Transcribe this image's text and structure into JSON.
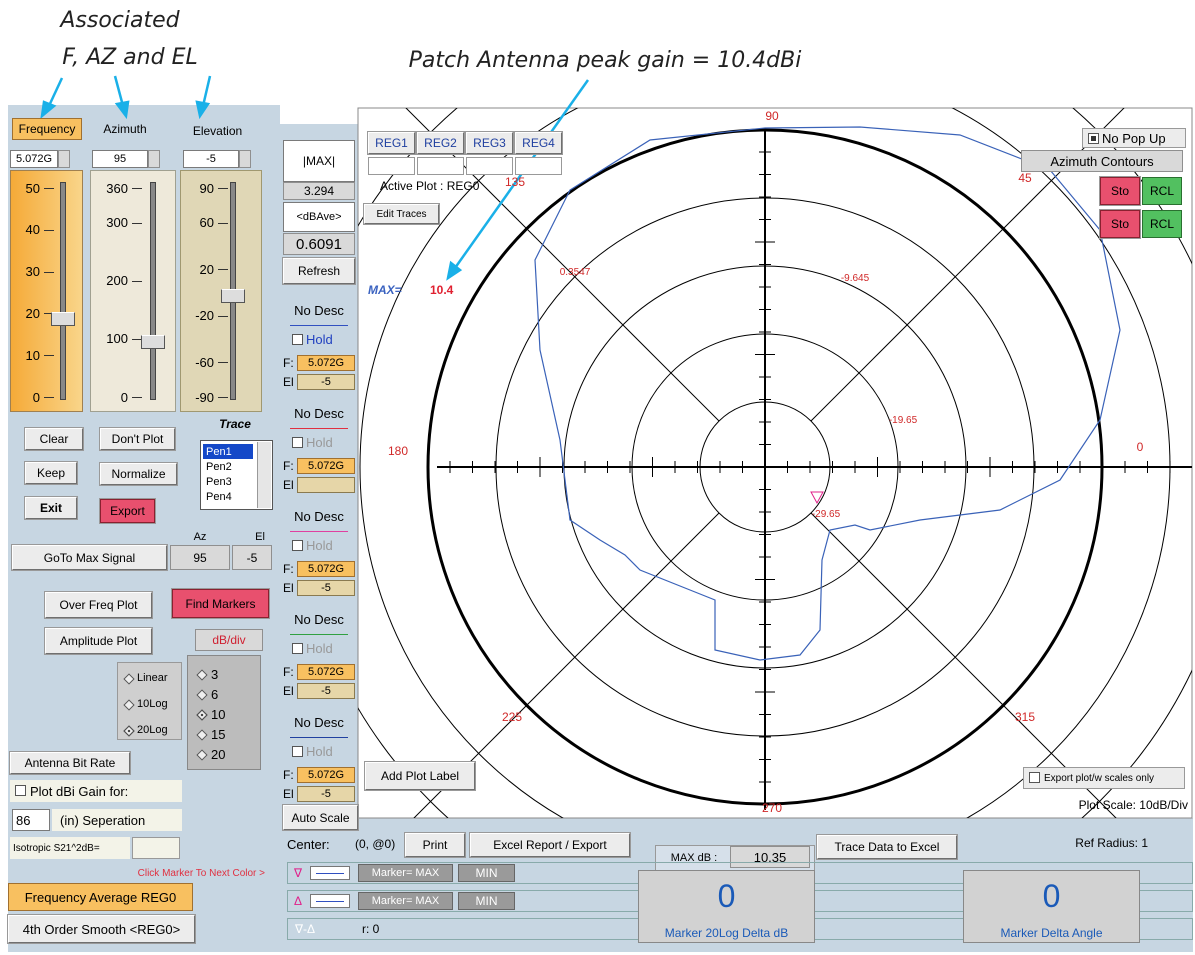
{
  "annotations": {
    "line1": "Associated",
    "line2": "F, AZ and EL",
    "peak": "Patch Antenna peak gain = 10.4dBi"
  },
  "left_panel": {
    "frequency": {
      "button": "Frequency",
      "value": "5.072G",
      "scale": [
        50,
        40,
        30,
        20,
        10,
        0
      ]
    },
    "azimuth": {
      "label": "Azimuth",
      "value": "95",
      "scale": [
        360,
        300,
        200,
        100,
        0
      ]
    },
    "elevation": {
      "label": "Elevation",
      "value": "-5",
      "scale": [
        90,
        60,
        20,
        -20,
        -60,
        -90
      ]
    },
    "buttons": {
      "clear": "Clear",
      "dont_plot": "Don't Plot",
      "keep": "Keep",
      "normalize": "Normalize",
      "exit": "Exit",
      "export": "Export"
    },
    "trace": {
      "label": "Trace",
      "pens": [
        "Pen1",
        "Pen2",
        "Pen3",
        "Pen4"
      ]
    },
    "goto": {
      "button": "GoTo Max Signal",
      "az_label": "Az",
      "el_label": "El",
      "az": "95",
      "el": "-5"
    },
    "over_freq": "Over Freq Plot",
    "find_markers": "Find Markers",
    "amplitude": "Amplitude Plot",
    "db_div": "dB/div",
    "scale_modes": [
      "Linear",
      "10Log",
      "20Log"
    ],
    "db_options": [
      "3",
      "6",
      "10",
      "15",
      "20"
    ],
    "antenna_bit_rate": "Antenna Bit Rate",
    "plot_dbi": "Plot dBi Gain  for:",
    "separation_value": "86",
    "separation_label": "(in) Seperation",
    "isotropic": "Isotropic S21^2dB=",
    "click_marker": "Click Marker To Next Color >",
    "freq_avg": "Frequency Average REG0",
    "smooth": "4th Order Smooth <REG0>"
  },
  "middle": {
    "max_label": "|MAX|",
    "max_value": "3.294",
    "ave_label": "<dBAve>",
    "ave_value": "0.6091",
    "refresh": "Refresh",
    "pens": [
      {
        "desc": "No Desc",
        "hold": "Hold",
        "f_label": "F:",
        "f": "5.072G",
        "el_label": "El",
        "el": "-5"
      },
      {
        "desc": "No Desc",
        "hold": "Hold",
        "f_label": "F:",
        "f": "5.072G",
        "el_label": "El"
      },
      {
        "desc": "No Desc",
        "hold": "Hold",
        "f_label": "F:",
        "f": "5.072G",
        "el_label": "El",
        "el": "-5"
      },
      {
        "desc": "No Desc",
        "hold": "Hold",
        "f_label": "F:",
        "f": "5.072G",
        "el_label": "El",
        "el": "-5"
      },
      {
        "desc": "No Desc",
        "hold": "Hold",
        "f_label": "F:",
        "f": "5.072G",
        "el_label": "El",
        "el": "-5"
      }
    ],
    "auto_scale": "Auto Scale"
  },
  "plot": {
    "regs": [
      "REG1",
      "REG2",
      "REG3",
      "REG4"
    ],
    "active_plot": "Active Plot : REG0",
    "edit_traces": "Edit Traces",
    "no_pop_up": "No Pop Up",
    "azimuth_contours": "Azimuth Contours",
    "store_recall": [
      {
        "sto": "Sto",
        "rcl": "RCL"
      },
      {
        "sto": "Sto",
        "rcl": "RCL"
      }
    ],
    "angle_labels": [
      90,
      45,
      0,
      315,
      270,
      225,
      180,
      135
    ],
    "ring_labels": [
      0.3547,
      -9.645,
      -19.65,
      -29.65
    ],
    "max_label": "MAX=",
    "max_value": 10.4,
    "add_plot_label": "Add Plot Label",
    "export_scales": "Export plot/w scales only",
    "plot_scale": "Plot Scale: 10dB/Div"
  },
  "bottom": {
    "center_label": "Center:",
    "center_value": "(0, @0)",
    "print": "Print",
    "excel": "Excel Report / Export",
    "max_db_label": "MAX dB :",
    "max_db_value": "10.35",
    "trace_excel": "Trace Data to Excel",
    "ref_radius": "Ref Radius: 1",
    "markers": [
      {
        "symbol": "∇",
        "marker": "Marker= MAX",
        "min": "MIN"
      },
      {
        "symbol": "Δ",
        "marker": "Marker= MAX",
        "min": "MIN"
      }
    ],
    "delta": {
      "symbol": "∇-Δ",
      "r": "r: 0"
    },
    "delta_db": {
      "value": "0",
      "label": "Marker 20Log Delta dB"
    },
    "delta_angle": {
      "value": "0",
      "label": "Marker Delta Angle"
    }
  }
}
